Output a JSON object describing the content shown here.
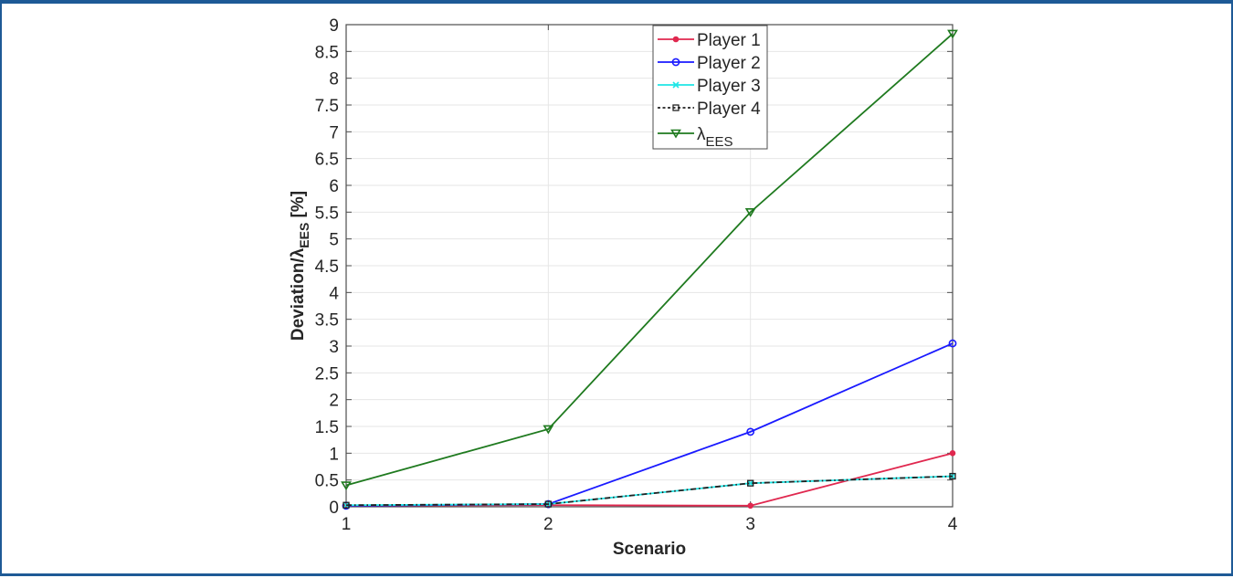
{
  "chart_data": {
    "type": "line",
    "title": "",
    "xlabel": "Scenario",
    "ylabel": "Deviation/λEES [%]",
    "ylabel_parts": {
      "main": "Deviation/λ",
      "sub": "EES",
      "suffix": " [%]"
    },
    "x": [
      1,
      2,
      3,
      4
    ],
    "xticks": [
      "1",
      "2",
      "3",
      "4"
    ],
    "xlim": [
      1,
      4
    ],
    "ylim": [
      0,
      9
    ],
    "yticks": [
      "0",
      "0.5",
      "1",
      "1.5",
      "2",
      "2.5",
      "3",
      "3.5",
      "4",
      "4.5",
      "5",
      "5.5",
      "6",
      "6.5",
      "7",
      "7.5",
      "8",
      "8.5",
      "9"
    ],
    "grid": true,
    "legend_position": "top-center (inside)",
    "series": [
      {
        "name": "Player 1",
        "label_main": "Player 1",
        "label_sub": "",
        "color": "#e0284f",
        "marker": "dot",
        "dash": "solid",
        "values": [
          0.02,
          0.03,
          0.02,
          1.0
        ]
      },
      {
        "name": "Player 2",
        "label_main": "Player 2",
        "label_sub": "",
        "color": "#1a1aff",
        "marker": "circle",
        "dash": "solid",
        "values": [
          0.02,
          0.05,
          1.4,
          3.05
        ]
      },
      {
        "name": "Player 3",
        "label_main": "Player 3",
        "label_sub": "",
        "color": "#1ee6e6",
        "marker": "x",
        "dash": "solid",
        "values": [
          0.03,
          0.05,
          0.44,
          0.57
        ]
      },
      {
        "name": "Player 4",
        "label_main": "Player 4",
        "label_sub": "",
        "color": "#222222",
        "marker": "square",
        "dash": "dashdot",
        "values": [
          0.03,
          0.05,
          0.44,
          0.57
        ]
      },
      {
        "name": "λEES",
        "label_main": "λ",
        "label_sub": "EES",
        "color": "#1f7a1f",
        "marker": "triangle-down",
        "dash": "solid",
        "values": [
          0.4,
          1.45,
          5.5,
          8.83
        ]
      }
    ]
  },
  "colors": {
    "frame_border": "#1e5a96",
    "grid": "#e6e6e6",
    "axis": "#4d4d4d",
    "text": "#262626"
  }
}
